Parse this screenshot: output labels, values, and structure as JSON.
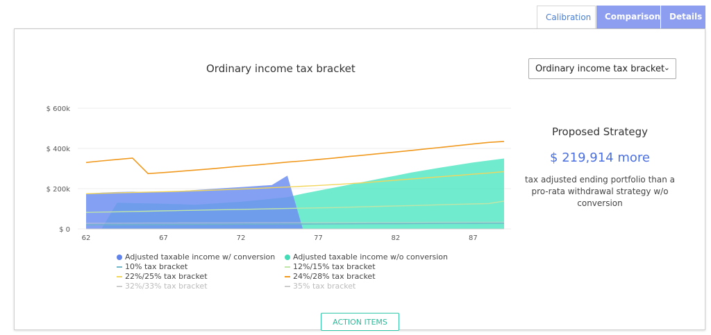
{
  "tabs": [
    {
      "label": "Calibration"
    },
    {
      "label": "Comparison"
    },
    {
      "label": "Details"
    }
  ],
  "chart_title": "Ordinary income tax bracket",
  "select": {
    "value": "Ordinary income tax bracket"
  },
  "strategy": {
    "title": "Proposed Strategy",
    "value": "$ 219,914 more",
    "description": "tax adjusted ending portfolio than a pro-rata withdrawal strategy w/o conversion"
  },
  "action_button": "ACTION ITEMS",
  "colors": {
    "with_conversion": "#6f8ff0",
    "without_conversion": "#4de6c0",
    "bracket_10": "#6fb6c9",
    "bracket_12": "#bfe5a8",
    "bracket_22": "#f2d65c",
    "bracket_24": "#f0981c",
    "bracket_32": "#cccccc",
    "bracket_35": "#cccccc",
    "tab_inactive": "#8d9ef0",
    "accent": "#4a6fe0"
  },
  "chart_data": {
    "type": "area",
    "title": "Ordinary income tax bracket",
    "x": [
      62,
      63,
      64,
      65,
      66,
      67,
      68,
      69,
      70,
      71,
      72,
      73,
      74,
      75,
      76,
      77,
      78,
      79,
      80,
      81,
      82,
      83,
      84,
      85,
      86,
      87,
      88,
      89
    ],
    "xticks": [
      "62",
      "67",
      "72",
      "77",
      "82",
      "87"
    ],
    "yticks": [
      "$ 0",
      "$ 200k",
      "$ 400k",
      "$ 600k"
    ],
    "ylim": [
      0,
      600000
    ],
    "grid": true,
    "series": [
      {
        "name": "Adjusted taxable income w/ conversion",
        "kind": "area",
        "values": [
          175000,
          180000,
          183000,
          185000,
          183000,
          183000,
          188000,
          193000,
          198000,
          203000,
          208000,
          213000,
          218000,
          265000,
          0,
          0,
          0,
          0,
          0,
          0,
          0,
          0,
          0,
          0,
          0,
          0,
          0,
          0
        ]
      },
      {
        "name": "Adjusted taxable income w/o conversion",
        "kind": "area",
        "values": [
          0,
          0,
          130000,
          128000,
          127000,
          125000,
          123000,
          120000,
          125000,
          130000,
          135000,
          142000,
          150000,
          158000,
          175000,
          190000,
          205000,
          220000,
          235000,
          250000,
          265000,
          280000,
          293000,
          306000,
          318000,
          330000,
          340000,
          350000
        ]
      },
      {
        "name": "10% tax bracket",
        "kind": "line",
        "values": [
          20000,
          20300,
          20600,
          20900,
          21200,
          21500,
          21800,
          22100,
          22400,
          22700,
          23000,
          23300,
          23600,
          23900,
          24200,
          24500,
          24800,
          25100,
          25400,
          25700,
          26000,
          26300,
          26600,
          26900,
          27200,
          27500,
          27800,
          28000
        ]
      },
      {
        "name": "12%/15% tax bracket",
        "kind": "line",
        "values": [
          82000,
          83500,
          85000,
          86500,
          88000,
          89500,
          91000,
          92500,
          94000,
          95500,
          97000,
          98500,
          100000,
          101500,
          103000,
          104500,
          106000,
          108000,
          110000,
          112000,
          114000,
          116000,
          118000,
          120000,
          122000,
          124000,
          126000,
          138000
        ]
      },
      {
        "name": "22%/25% tax bracket",
        "kind": "line",
        "values": [
          175000,
          177000,
          179000,
          181000,
          183000,
          185000,
          187000,
          189500,
          192000,
          195000,
          198000,
          201000,
          205000,
          208000,
          212000,
          216000,
          220000,
          225000,
          230000,
          236000,
          242000,
          248000,
          254000,
          260000,
          266000,
          272000,
          278000,
          285000
        ]
      },
      {
        "name": "24%/28% tax bracket",
        "kind": "line",
        "values": [
          330000,
          338000,
          345000,
          352000,
          275000,
          280000,
          286000,
          292000,
          298000,
          305000,
          312000,
          318000,
          325000,
          332000,
          338000,
          345000,
          352000,
          360000,
          367000,
          375000,
          382000,
          390000,
          398000,
          406000,
          414000,
          422000,
          430000,
          435000
        ]
      },
      {
        "name": "32%/33% tax bracket",
        "kind": "line",
        "faded": true,
        "values": [
          28000,
          28200,
          28400,
          28600,
          28800,
          29000,
          29200,
          29400,
          29600,
          29800,
          30000,
          30200,
          30400,
          30600,
          30800,
          31000,
          31200,
          31400,
          31600,
          31800,
          32000,
          32200,
          32400,
          32600,
          32800,
          33000,
          33200,
          33500
        ]
      },
      {
        "name": "35% tax bracket",
        "kind": "line",
        "faded": true,
        "values": [
          0,
          0,
          0,
          0,
          0,
          0,
          0,
          0,
          0,
          0,
          0,
          0,
          0,
          0,
          0,
          0,
          0,
          0,
          0,
          0,
          0,
          0,
          0,
          0,
          0,
          0,
          0,
          0
        ]
      }
    ]
  }
}
